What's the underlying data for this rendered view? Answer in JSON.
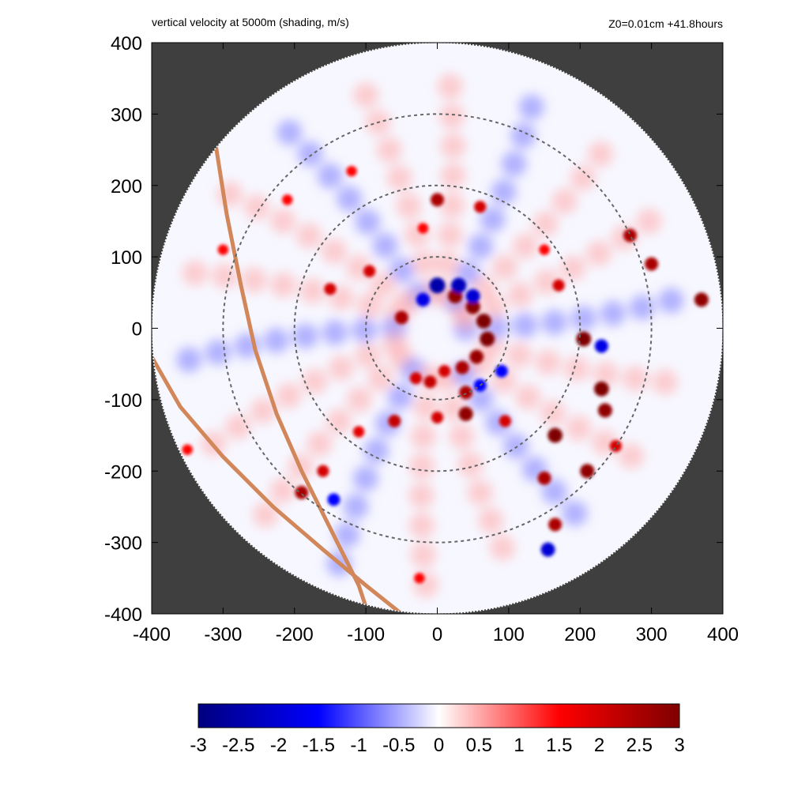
{
  "header": {
    "title": "vertical velocity at 5000m (shading, m/s)",
    "info": "Z0=0.01cm  +41.8hours"
  },
  "chart_data": {
    "type": "heatmap",
    "title": "vertical velocity at 5000m (shading, m/s)",
    "subtitle": "Z0=0.01cm  +41.8hours",
    "xlabel": "",
    "ylabel": "",
    "xlim": [
      -400,
      400
    ],
    "ylim": [
      -400,
      400
    ],
    "x_ticks": [
      -400,
      -300,
      -200,
      -100,
      0,
      100,
      200,
      300,
      400
    ],
    "y_ticks": [
      400,
      300,
      200,
      100,
      0,
      -100,
      -200,
      -300,
      -400
    ],
    "x_tick_labels": [
      "-400",
      "-300",
      "-200",
      "-100",
      "0",
      "100",
      "200",
      "300",
      "400"
    ],
    "y_tick_labels": [
      "400",
      "300",
      "200",
      "100",
      "0",
      "-100",
      "-200",
      "-300",
      "-400"
    ],
    "domain_radius": 400,
    "range_rings_radius": [
      100,
      200,
      300
    ],
    "colorbar": {
      "min": -3,
      "max": 3,
      "ticks": [
        -3,
        -2.5,
        -2,
        -1.5,
        -1,
        -0.5,
        0,
        0.5,
        1,
        1.5,
        2,
        2.5,
        3
      ],
      "tick_labels": [
        "-3",
        "-2.5",
        "-2",
        "-1.5",
        "-1",
        "-0.5",
        "0",
        "0.5",
        "1",
        "1.5",
        "2",
        "2.5",
        "3"
      ],
      "colors": [
        "#00007f",
        "#0000ff",
        "#ffffff",
        "#ff0000",
        "#7f0000"
      ]
    },
    "coastlines": [
      [
        [
          -310,
          255
        ],
        [
          -295,
          160
        ],
        [
          -275,
          60
        ],
        [
          -255,
          -30
        ],
        [
          -225,
          -120
        ],
        [
          -190,
          -200
        ],
        [
          -150,
          -280
        ],
        [
          -110,
          -360
        ],
        [
          -100,
          -390
        ]
      ],
      [
        [
          -400,
          -40
        ],
        [
          -360,
          -110
        ],
        [
          -300,
          -180
        ],
        [
          -230,
          -250
        ],
        [
          -160,
          -310
        ],
        [
          -100,
          -360
        ],
        [
          -50,
          -400
        ]
      ]
    ],
    "updraft_cores": [
      [
        25,
        45,
        2.8
      ],
      [
        50,
        30,
        2.9
      ],
      [
        65,
        10,
        3
      ],
      [
        70,
        -15,
        3
      ],
      [
        55,
        -40,
        2.7
      ],
      [
        35,
        -55,
        2.5
      ],
      [
        -50,
        15,
        2.5
      ],
      [
        -150,
        55,
        2
      ],
      [
        -95,
        80,
        2
      ],
      [
        -20,
        140,
        1.5
      ],
      [
        0,
        180,
        2.5
      ],
      [
        60,
        170,
        2
      ],
      [
        150,
        110,
        1.5
      ],
      [
        170,
        60,
        2
      ],
      [
        205,
        -15,
        3
      ],
      [
        230,
        -85,
        3
      ],
      [
        235,
        -115,
        2.8
      ],
      [
        165,
        -150,
        3
      ],
      [
        150,
        -210,
        2.5
      ],
      [
        210,
        -200,
        2.8
      ],
      [
        165,
        -275,
        2.5
      ],
      [
        40,
        -90,
        2.5
      ],
      [
        40,
        -120,
        2.8
      ],
      [
        0,
        -125,
        2
      ],
      [
        -60,
        -130,
        2.2
      ],
      [
        -110,
        -145,
        1.8
      ],
      [
        -160,
        -200,
        2
      ],
      [
        -190,
        -230,
        2.5
      ],
      [
        -25,
        -350,
        1.5
      ],
      [
        270,
        130,
        2.5
      ],
      [
        300,
        90,
        2.5
      ],
      [
        370,
        40,
        2.8
      ],
      [
        -300,
        110,
        1.5
      ],
      [
        -350,
        -170,
        1.5
      ],
      [
        -210,
        180,
        1.5
      ],
      [
        -120,
        220,
        1.5
      ],
      [
        -30,
        -70,
        2
      ],
      [
        -10,
        -75,
        2.2
      ],
      [
        10,
        -60,
        2
      ],
      [
        95,
        -130,
        2
      ],
      [
        250,
        -165,
        2
      ]
    ],
    "downdraft_cores": [
      [
        0,
        60,
        -2.5
      ],
      [
        30,
        60,
        -2.3
      ],
      [
        50,
        45,
        -2
      ],
      [
        -20,
        40,
        -1.8
      ],
      [
        230,
        -25,
        -1.8
      ],
      [
        155,
        -310,
        -2
      ],
      [
        -145,
        -240,
        -1.5
      ],
      [
        90,
        -60,
        -1.5
      ],
      [
        60,
        -80,
        -1.5
      ]
    ]
  }
}
